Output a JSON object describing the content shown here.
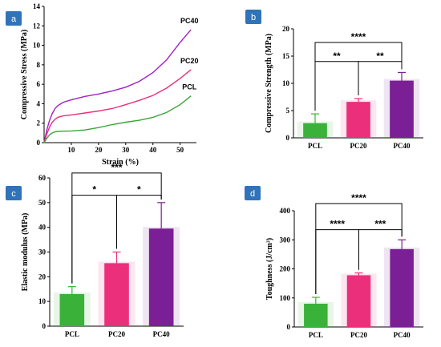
{
  "chart_data": [
    {
      "panel": "a",
      "type": "line",
      "xlabel": "Strain (%)",
      "ylabel": "Compressive Stress (MPa)",
      "xlim": [
        0,
        56
      ],
      "ylim": [
        0,
        14
      ],
      "xticks": [
        10,
        20,
        30,
        40,
        50
      ],
      "yticks": [
        0,
        2,
        4,
        6,
        8,
        10,
        12,
        14
      ],
      "series": [
        {
          "name": "PC40",
          "color": "#a020c8",
          "x": [
            0,
            1,
            2,
            3,
            4,
            5,
            7,
            10,
            15,
            20,
            25,
            30,
            35,
            40,
            45,
            50,
            54
          ],
          "y": [
            0,
            1.3,
            2.3,
            3.0,
            3.5,
            3.8,
            4.15,
            4.4,
            4.75,
            5.0,
            5.3,
            5.7,
            6.3,
            7.2,
            8.5,
            10.3,
            11.6
          ]
        },
        {
          "name": "PC20",
          "color": "#ec2f7a",
          "x": [
            0,
            1,
            2,
            3,
            4,
            5,
            7,
            10,
            15,
            20,
            25,
            30,
            35,
            40,
            45,
            50,
            54
          ],
          "y": [
            0,
            0.9,
            1.6,
            2.1,
            2.4,
            2.6,
            2.75,
            2.85,
            3.05,
            3.25,
            3.5,
            3.9,
            4.35,
            4.85,
            5.6,
            6.6,
            7.5
          ]
        },
        {
          "name": "PCL",
          "color": "#3aa53a",
          "x": [
            0,
            1,
            2,
            3,
            4,
            5,
            7,
            10,
            15,
            20,
            25,
            30,
            35,
            40,
            45,
            50,
            54
          ],
          "y": [
            0,
            0.45,
            0.8,
            1.0,
            1.1,
            1.15,
            1.18,
            1.2,
            1.3,
            1.55,
            1.85,
            2.1,
            2.3,
            2.6,
            3.1,
            3.9,
            4.8
          ]
        }
      ]
    },
    {
      "panel": "b",
      "type": "bar",
      "categories": [
        "PCL",
        "PC20",
        "PC40"
      ],
      "values": [
        2.7,
        6.6,
        10.5
      ],
      "errors": [
        1.7,
        0.6,
        1.5
      ],
      "colors": [
        "#3ab23a",
        "#ec2f7a",
        "#7a1f96"
      ],
      "ylabel": "Compressive Strength (MPa)",
      "ylim": [
        0,
        20
      ],
      "yticks": [
        0,
        5,
        10,
        15,
        20
      ],
      "significance": [
        {
          "from": 0,
          "to": 1,
          "label": "**",
          "level": 14
        },
        {
          "from": 1,
          "to": 2,
          "label": "**",
          "level": 14
        },
        {
          "from": 0,
          "to": 2,
          "label": "****",
          "level": 17.5
        }
      ]
    },
    {
      "panel": "c",
      "type": "bar",
      "categories": [
        "PCL",
        "PC20",
        "PC40"
      ],
      "values": [
        13,
        25.5,
        39.5
      ],
      "errors": [
        3,
        4.5,
        10.5
      ],
      "colors": [
        "#3ab23a",
        "#ec2f7a",
        "#7a1f96"
      ],
      "ylabel": "Elastic modulus (MPa)",
      "ylim": [
        0,
        60
      ],
      "yticks": [
        0,
        10,
        20,
        30,
        40,
        50,
        60
      ],
      "significance": [
        {
          "from": 0,
          "to": 1,
          "label": "*",
          "level": 53
        },
        {
          "from": 1,
          "to": 2,
          "label": "*",
          "level": 53
        },
        {
          "from": 0,
          "to": 2,
          "label": "***",
          "level": 62
        }
      ]
    },
    {
      "panel": "d",
      "type": "bar",
      "categories": [
        "PCL",
        "PC20",
        "PC40"
      ],
      "values": [
        80,
        178,
        268
      ],
      "errors": [
        22,
        8,
        32
      ],
      "colors": [
        "#3ab23a",
        "#ec2f7a",
        "#7a1f96"
      ],
      "ylabel": "Toughness (J/cm³)",
      "ylim": [
        0,
        400
      ],
      "yticks": [
        0,
        100,
        200,
        300,
        400
      ],
      "significance": [
        {
          "from": 0,
          "to": 1,
          "label": "****",
          "level": 335
        },
        {
          "from": 1,
          "to": 2,
          "label": "***",
          "level": 335
        },
        {
          "from": 0,
          "to": 2,
          "label": "****",
          "level": 425
        }
      ]
    }
  ],
  "badge_color": "#2f73b8"
}
